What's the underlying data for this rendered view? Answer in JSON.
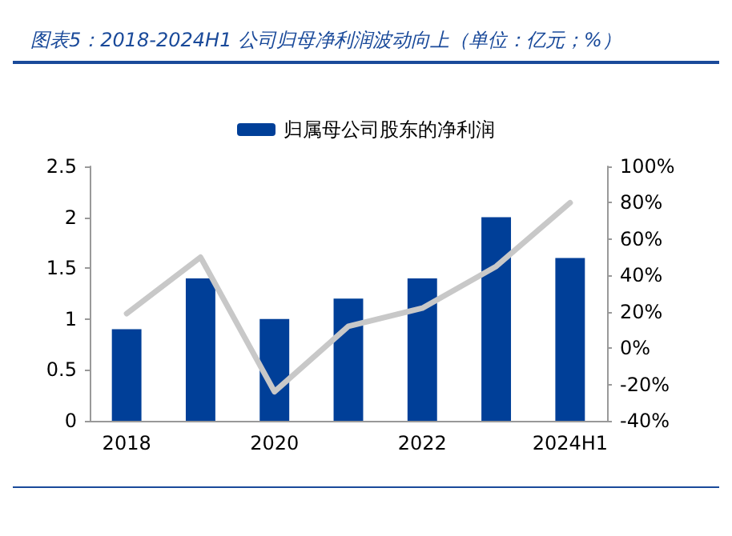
{
  "chart_data": {
    "type": "bar",
    "title": "图表5：2018-2024H1 公司归母净利润波动向上（单位：亿元；%）",
    "categories": [
      "2018",
      null,
      "2020",
      null,
      "2022",
      null,
      "2024H1"
    ],
    "series": [
      {
        "name": "归属母公司股东的净利润",
        "color": "#003f98",
        "values": [
          0.9,
          1.4,
          1.0,
          1.2,
          1.4,
          2.0,
          1.6
        ]
      },
      {
        "type": "line",
        "axis": "y2",
        "color": "#c8c8c8",
        "values": [
          19,
          50,
          -24,
          12,
          22,
          45,
          80
        ]
      }
    ],
    "ylim": [
      0,
      2.5
    ],
    "yticks": [
      0,
      0.5,
      1,
      1.5,
      2,
      2.5
    ],
    "y2lim": [
      -40,
      100
    ],
    "y2ticks": [
      {
        "value": -40,
        "label": "-40%"
      },
      {
        "value": -20,
        "label": "-20%"
      },
      {
        "value": 0,
        "label": "0%"
      },
      {
        "value": 20,
        "label": "20%"
      },
      {
        "value": 40,
        "label": "40%"
      },
      {
        "value": 60,
        "label": "60%"
      },
      {
        "value": 80,
        "label": "80%"
      },
      {
        "value": 100,
        "label": "100%"
      }
    ],
    "grid": false,
    "legend": "top",
    "marker": "none",
    "line_style": "solid"
  }
}
